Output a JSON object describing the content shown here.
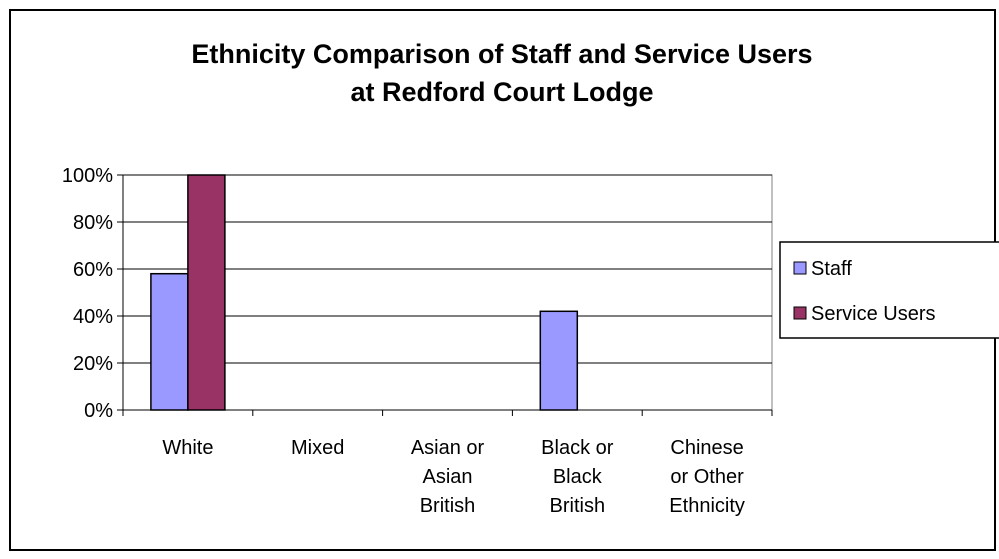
{
  "chart_data": {
    "type": "bar",
    "title": [
      "Ethnicity Comparison of Staff and Service Users",
      "at Redford Court Lodge"
    ],
    "categories": [
      [
        "White"
      ],
      [
        "Mixed"
      ],
      [
        "Asian or",
        "Asian",
        "British"
      ],
      [
        "Black or",
        "Black",
        "British"
      ],
      [
        "Chinese",
        "or Other",
        "Ethnicity"
      ]
    ],
    "series": [
      {
        "name": "Staff",
        "color": "#9999ff",
        "values": [
          58,
          0,
          0,
          42,
          0
        ]
      },
      {
        "name": "Service Users",
        "color": "#993366",
        "values": [
          100,
          0,
          0,
          0,
          0
        ]
      }
    ],
    "ylim": [
      0,
      100
    ],
    "yticks": [
      0,
      20,
      40,
      60,
      80,
      100
    ],
    "ytick_labels": [
      "0%",
      "20%",
      "40%",
      "60%",
      "80%",
      "100%"
    ],
    "grid": true,
    "legend_position": "right"
  }
}
